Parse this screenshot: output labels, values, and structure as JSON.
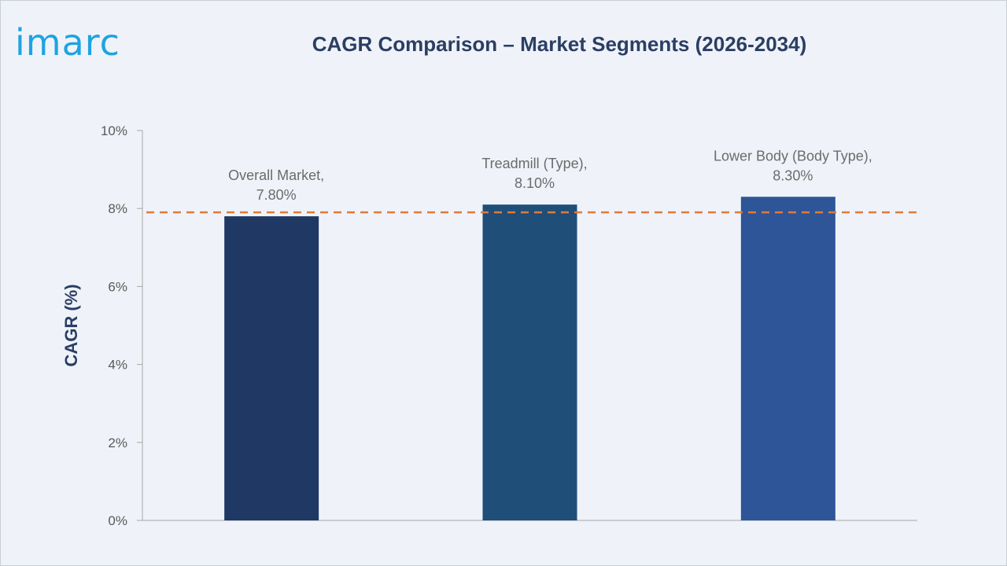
{
  "brand": {
    "logo_text": "imarc",
    "logo_color": "#1fa3e0"
  },
  "chart_data": {
    "type": "bar",
    "title": "CAGR Comparison – Market Segments (2026-2034)",
    "xlabel": "",
    "ylabel": "CAGR (%)",
    "ylim": [
      0,
      10
    ],
    "yticks": [
      0,
      2,
      4,
      6,
      8,
      10
    ],
    "ytick_labels": [
      "0%",
      "2%",
      "4%",
      "6%",
      "8%",
      "10%"
    ],
    "categories": [
      "Overall Market",
      "Treadmill (Type)",
      "Lower Body (Body Type)"
    ],
    "values": [
      7.8,
      8.1,
      8.3
    ],
    "data_labels": [
      [
        "Overall Market,",
        "7.80%"
      ],
      [
        "Treadmill (Type),",
        "8.10%"
      ],
      [
        "Lower Body (Body Type),",
        "8.30%"
      ]
    ],
    "bar_colors": [
      "#1f3864",
      "#1f4e79",
      "#2e5597"
    ],
    "reference_line": {
      "value": 7.8,
      "style": "dashed",
      "color": "#e07b39"
    },
    "grid": false,
    "legend": "none"
  }
}
